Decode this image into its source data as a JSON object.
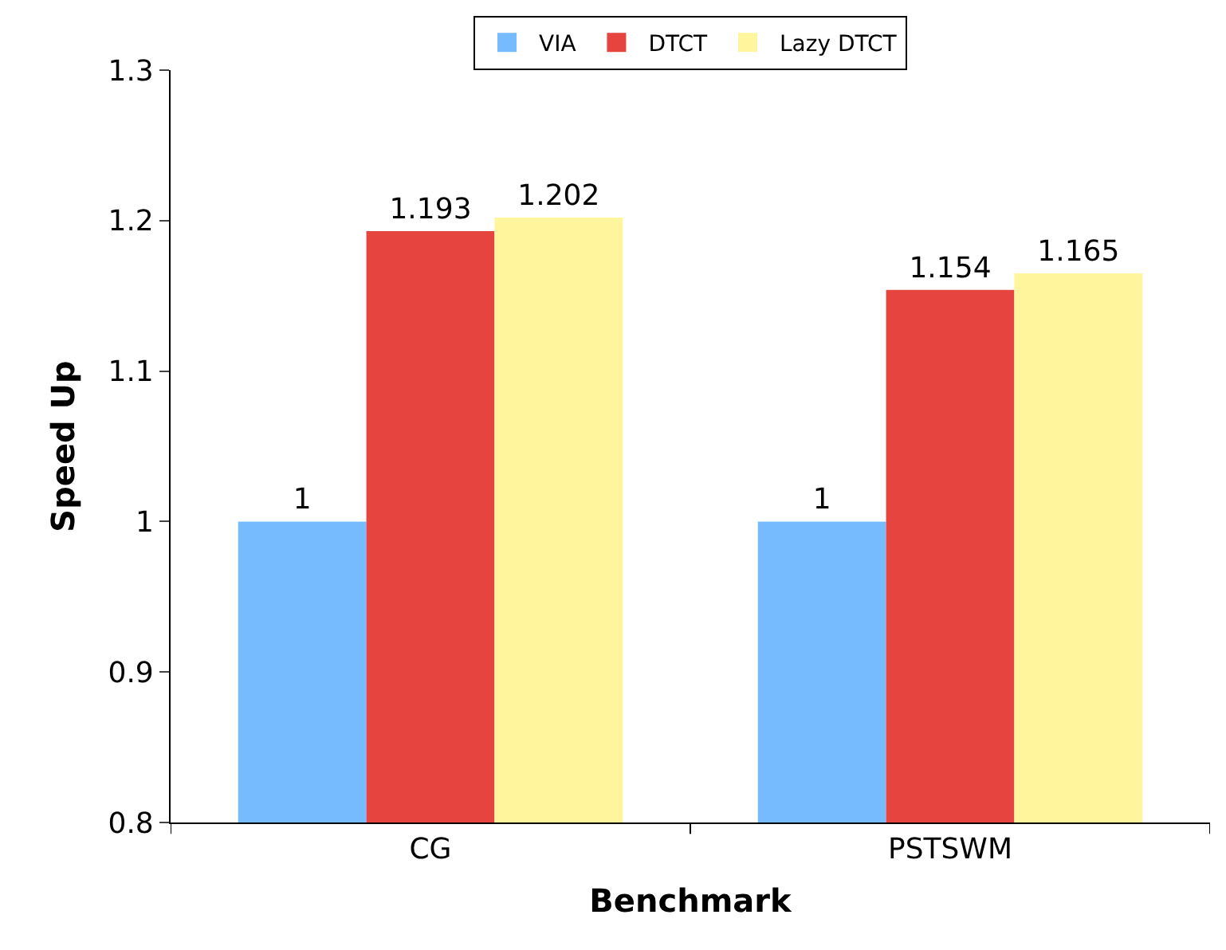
{
  "chart_data": {
    "type": "bar",
    "xlabel": "Benchmark",
    "ylabel": "Speed Up",
    "categories": [
      "CG",
      "PSTSWM"
    ],
    "series": [
      {
        "name": "VIA",
        "color": "#77bbff",
        "values": [
          1,
          1
        ]
      },
      {
        "name": "DTCT",
        "color": "#e5443f",
        "values": [
          1.193,
          1.154
        ]
      },
      {
        "name": "Lazy DTCT",
        "color": "#fff59d",
        "values": [
          1.202,
          1.165
        ]
      }
    ],
    "ylim": [
      0.8,
      1.3
    ],
    "yticks": [
      0.8,
      0.9,
      1,
      1.1,
      1.2,
      1.3
    ],
    "data_labels": true,
    "grid": false,
    "legend": "top"
  }
}
